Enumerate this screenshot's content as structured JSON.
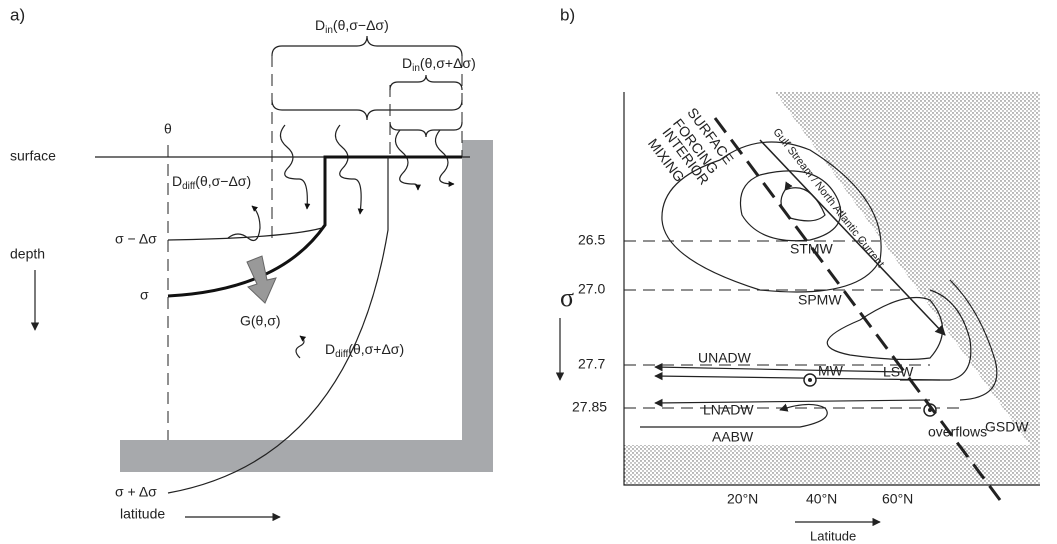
{
  "panel_a": {
    "label": "a)",
    "theta": "θ",
    "surface": "surface",
    "depth": "depth",
    "latitude": "latitude",
    "sigma_minus": "σ − Δσ",
    "sigma": "σ",
    "sigma_plus": "σ + Δσ",
    "g": "G(θ,σ)",
    "d_in_minus": {
      "main": "D",
      "sub": "in",
      "args": "(θ,σ−Δσ)"
    },
    "d_in_plus": {
      "main": "D",
      "sub": "in",
      "args": "(θ,σ+Δσ)"
    },
    "d_diff_minus": {
      "main": "D",
      "sub": "diff",
      "args": "(θ,σ−Δσ)"
    },
    "d_diff_plus": {
      "main": "D",
      "sub": "diff",
      "args": "(θ,σ+Δσ)"
    }
  },
  "panel_b": {
    "label": "b)",
    "sigma": "σ",
    "surface_forcing": [
      "SURFACE",
      "FORCING"
    ],
    "interior_mixing": [
      "INTERIOR",
      "MIXING"
    ],
    "gulf_stream": "Gulf Stream / North Atlantic Current",
    "sigma_ticks": [
      "26.5",
      "27.0",
      "27.7",
      "27.85"
    ],
    "lat_ticks": [
      "20°N",
      "40°N",
      "60°N"
    ],
    "x_label": "Latitude",
    "water_masses": {
      "stmw": "STMW",
      "spmw": "SPMW",
      "unadw": "UNADW",
      "mw": "MW",
      "lsw": "LSW",
      "lnadw": "LNADW",
      "aabw": "AABW",
      "overflows": "overflows",
      "gsdw": "GSDW"
    }
  }
}
